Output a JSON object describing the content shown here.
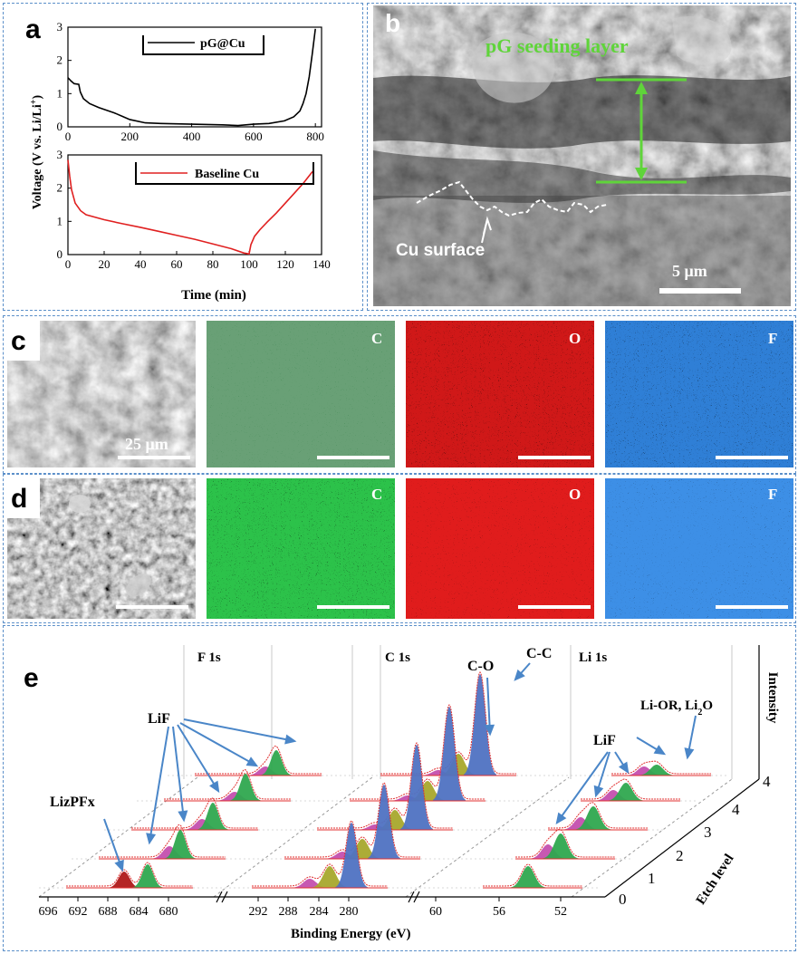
{
  "panel_a": {
    "label": "a",
    "ylabel": "Voltage (V vs. Li/Li",
    "ylabel_sup": "+",
    "ylabel_end": ")",
    "xlabel": "Time (min)",
    "top": {
      "legend": "pG@Cu",
      "xticks": [
        "0",
        "200",
        "400",
        "600",
        "800"
      ],
      "yticks": [
        "0",
        "1",
        "2",
        "3"
      ],
      "xlim": [
        0,
        820
      ],
      "ylim": [
        0,
        3
      ],
      "color": "#000000"
    },
    "bottom": {
      "legend": "Baseline Cu",
      "xticks": [
        "0",
        "20",
        "40",
        "60",
        "80",
        "100",
        "120",
        "140"
      ],
      "yticks": [
        "0",
        "1",
        "2",
        "3"
      ],
      "xlim": [
        0,
        140
      ],
      "ylim": [
        0,
        3
      ],
      "color": "#e02020"
    }
  },
  "chart_data": [
    {
      "type": "line",
      "title": "",
      "xlabel": "Time (min)",
      "ylabel": "Voltage (V vs. Li/Li+)",
      "xlim": [
        0,
        820
      ],
      "ylim": [
        0,
        3
      ],
      "series": [
        {
          "name": "pG@Cu",
          "x": [
            0,
            10,
            20,
            35,
            40,
            50,
            70,
            100,
            150,
            200,
            250,
            300,
            400,
            500,
            550,
            600,
            650,
            700,
            730,
            750,
            760,
            770,
            780,
            790,
            800
          ],
          "y": [
            1.48,
            1.38,
            1.3,
            1.28,
            1.05,
            0.85,
            0.7,
            0.58,
            0.42,
            0.22,
            0.12,
            0.1,
            0.08,
            0.06,
            0.04,
            0.08,
            0.1,
            0.18,
            0.3,
            0.48,
            0.7,
            1.0,
            1.5,
            2.2,
            2.95
          ]
        }
      ]
    },
    {
      "type": "line",
      "title": "",
      "xlabel": "Time (min)",
      "ylabel": "Voltage (V vs. Li/Li+)",
      "xlim": [
        0,
        140
      ],
      "ylim": [
        0,
        3
      ],
      "series": [
        {
          "name": "Baseline Cu",
          "x": [
            0,
            1,
            2,
            4,
            7,
            10,
            20,
            30,
            40,
            50,
            60,
            70,
            80,
            90,
            97,
            100,
            101,
            103,
            106,
            110,
            115,
            120,
            125,
            130,
            135
          ],
          "y": [
            2.85,
            2.35,
            1.95,
            1.55,
            1.32,
            1.2,
            1.05,
            0.93,
            0.82,
            0.7,
            0.58,
            0.46,
            0.32,
            0.18,
            0.05,
            0.02,
            0.3,
            0.55,
            0.75,
            0.98,
            1.25,
            1.55,
            1.85,
            2.15,
            2.5
          ]
        }
      ]
    }
  ],
  "panel_b": {
    "label": "b",
    "layer_label": "pG seeding layer",
    "surface_label": "Cu surface",
    "scale_text": "5 μm",
    "arrow_color": "#5fd43a"
  },
  "panel_c": {
    "label": "c",
    "scale_text": "25 μm",
    "maps": [
      "C",
      "O",
      "F"
    ]
  },
  "panel_d": {
    "label": "d",
    "maps": [
      "C",
      "O",
      "F"
    ]
  },
  "panel_e": {
    "label": "e",
    "section_titles": [
      "F 1s",
      "C 1s",
      "Li 1s"
    ],
    "peak_labels": {
      "lizpfx": "LizPFx",
      "lif_f": "LiF",
      "co": "C-O",
      "cc": "C-C",
      "lif_li": "LiF",
      "lior_prefix": "Li-OR, Li",
      "lior_sub": "2",
      "lior_suffix": "O"
    },
    "xlabel": "Binding Energy (eV)",
    "xticks": [
      "696",
      "692",
      "688",
      "684",
      "680",
      "292",
      "288",
      "284",
      "280",
      "60",
      "56",
      "52"
    ],
    "etch_title": "Etch level",
    "etch_ticks": [
      "0",
      "1",
      "2",
      "3",
      "4"
    ],
    "intensity_label": "Intensity",
    "colors": {
      "lif": "#2fa84f",
      "lizpfx": "#b01818",
      "organic": "#c44fae",
      "cc": "#4f72c2",
      "co": "#a8a82c",
      "fit": "#e03030"
    }
  }
}
